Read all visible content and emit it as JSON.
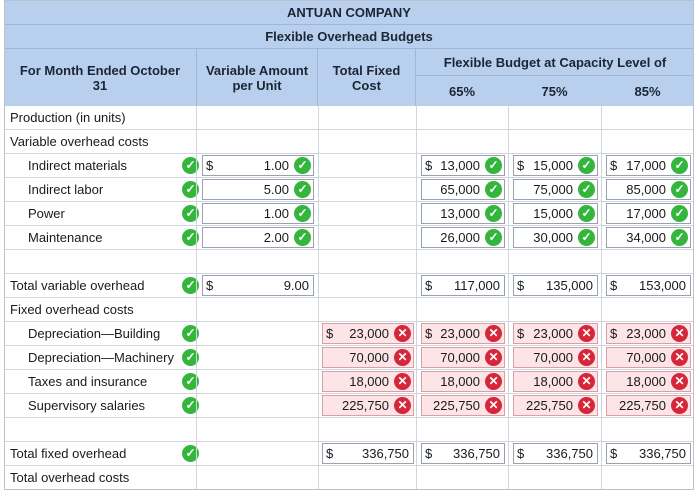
{
  "header": {
    "company": "ANTUAN COMPANY",
    "title": "Flexible Overhead Budgets",
    "period": "For Month Ended October 31",
    "col_variable": "Variable Amount per Unit",
    "col_fixed": "Total Fixed Cost",
    "col_flex": "Flexible Budget at Capacity Level of",
    "levels": [
      "65%",
      "75%",
      "85%"
    ]
  },
  "labels": {
    "production": "Production (in units)",
    "variable_costs": "Variable overhead costs",
    "total_variable": "Total variable overhead",
    "fixed_costs": "Fixed overhead costs",
    "total_fixed": "Total fixed overhead",
    "total_overhead": "Total overhead costs"
  },
  "currency": "$",
  "variable_items": [
    {
      "name": "Indirect materials",
      "rate": "1.00",
      "flex": [
        "13,000",
        "15,000",
        "17,000"
      ],
      "show_dollar": true
    },
    {
      "name": "Indirect labor",
      "rate": "5.00",
      "flex": [
        "65,000",
        "75,000",
        "85,000"
      ],
      "show_dollar": false
    },
    {
      "name": "Power",
      "rate": "1.00",
      "flex": [
        "13,000",
        "15,000",
        "17,000"
      ],
      "show_dollar": false
    },
    {
      "name": "Maintenance",
      "rate": "2.00",
      "flex": [
        "26,000",
        "30,000",
        "34,000"
      ],
      "show_dollar": false
    }
  ],
  "total_variable": {
    "rate": "9.00",
    "flex": [
      "117,000",
      "135,000",
      "153,000"
    ]
  },
  "fixed_items": [
    {
      "name": "Depreciation—Building",
      "cost": "23,000",
      "show_dollar": true
    },
    {
      "name": "Depreciation—Machinery",
      "cost": "70,000",
      "show_dollar": false
    },
    {
      "name": "Taxes and insurance",
      "cost": "18,000",
      "show_dollar": false
    },
    {
      "name": "Supervisory salaries",
      "cost": "225,750",
      "show_dollar": false
    }
  ],
  "total_fixed": {
    "cost": "336,750",
    "flex": [
      "336,750",
      "336,750",
      "336,750"
    ]
  },
  "marks": {
    "correct": "✓",
    "incorrect": "✕"
  }
}
